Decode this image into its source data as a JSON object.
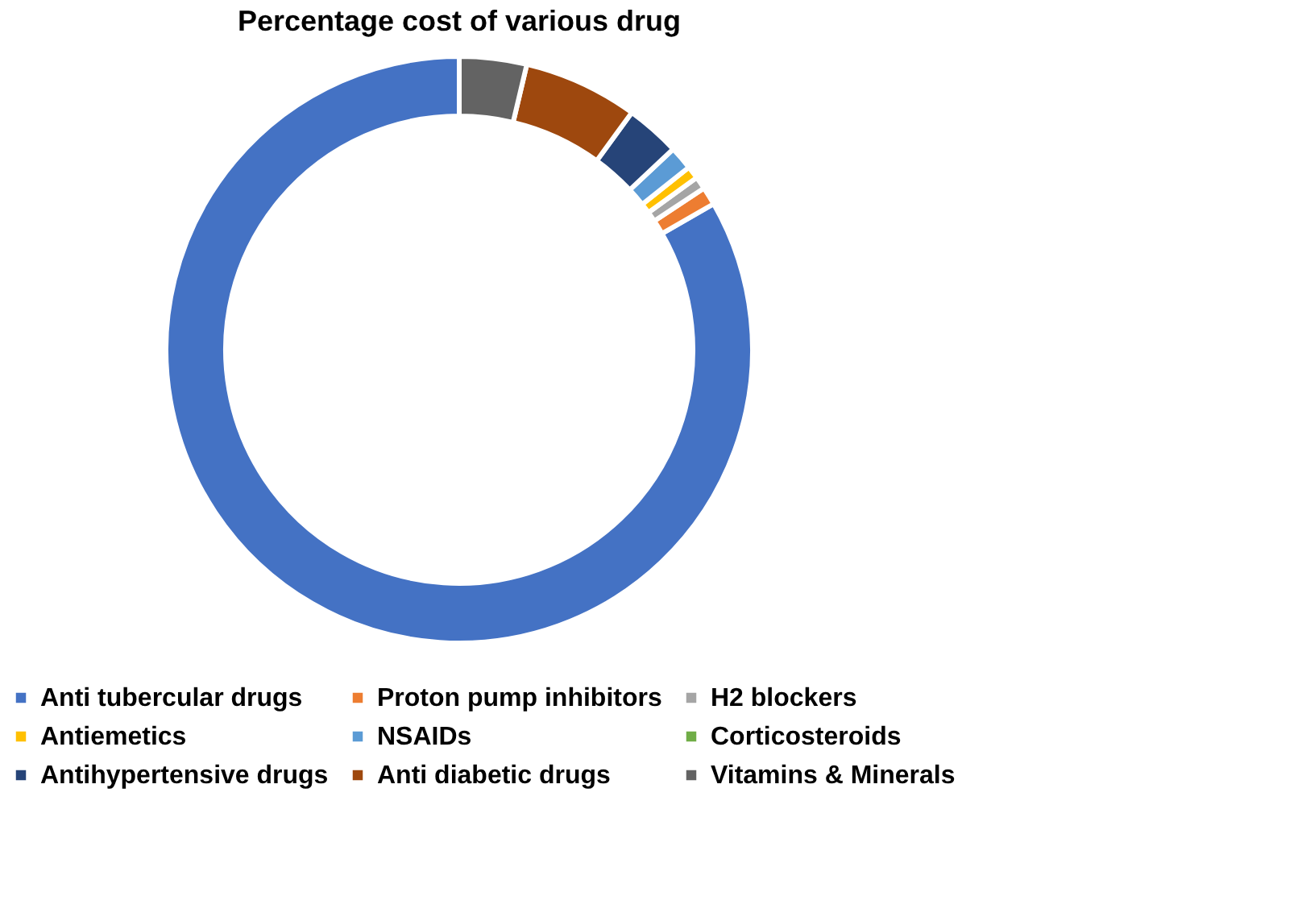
{
  "chart_data": {
    "type": "donut",
    "title": "Percentage cost of various drug",
    "categories": [
      "Anti tubercular drugs",
      "Proton pump inhibitors",
      "H2 blockers",
      "Antiemetics",
      "NSAIDs",
      "Corticosteroids",
      "Antihypertensive drugs",
      "Anti diabetic drugs",
      "Vitamins & Minerals"
    ],
    "values": [
      83.2,
      1.0,
      0.7,
      0.7,
      1.3,
      null,
      3.0,
      6.3,
      3.7
    ],
    "colors": [
      "#4472c4",
      "#ed7d31",
      "#a5a5a5",
      "#ffc000",
      "#5b9bd5",
      "#70ad47",
      "#264478",
      "#9e480e",
      "#636363"
    ],
    "legend": "bottom"
  }
}
